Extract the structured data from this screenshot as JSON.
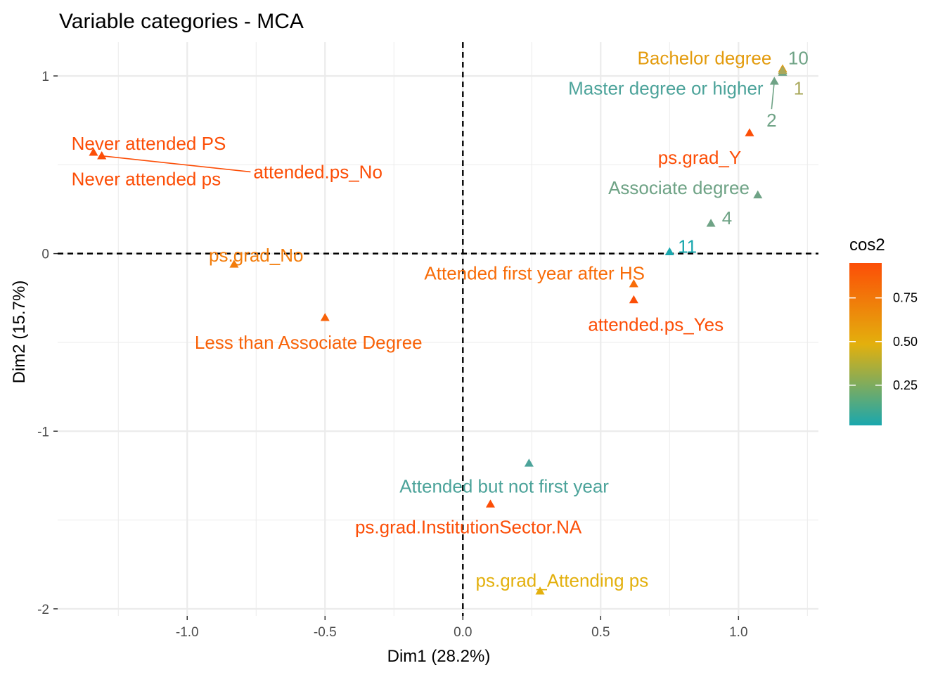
{
  "chart_data": {
    "type": "scatter",
    "title": "Variable categories - MCA",
    "xlabel": "Dim1 (28.2%)",
    "ylabel": "Dim2 (15.7%)",
    "xlim": [
      -1.47,
      1.29
    ],
    "ylim": [
      -2.04,
      1.19
    ],
    "x_ticks": [
      -1.0,
      -0.5,
      0.0,
      0.5,
      1.0
    ],
    "x_tick_labels": [
      "-1.0",
      "-0.5",
      "0.0",
      "0.5",
      "1.0"
    ],
    "y_ticks": [
      -2,
      -1,
      0,
      1
    ],
    "y_tick_labels": [
      "-2",
      "-1",
      "0",
      "1"
    ],
    "grid": true,
    "reference_lines": {
      "x": 0,
      "y": 0
    },
    "colors": {
      "low": "#1AA7AE",
      "mid": "#E3B00D",
      "high": "#FC4E07",
      "grid": "#EBEBEB",
      "line": "#000000"
    },
    "legend": {
      "title": "cos2",
      "placement": "right",
      "ticks": [
        0.25,
        0.5,
        0.75
      ],
      "tick_labels": [
        "0.25",
        "0.50",
        "0.75"
      ],
      "range": [
        0.02,
        0.95
      ]
    },
    "points": [
      {
        "label": "Bachelor degree",
        "x": 1.16,
        "y": 1.04,
        "cos2": 0.55,
        "color": "#E39B0D",
        "lx": 1.12,
        "ly": 1.1,
        "anchor": "end"
      },
      {
        "label": "10",
        "x": 1.16,
        "y": 1.02,
        "cos2": 0.2,
        "color": "#6FA386",
        "lx": 1.18,
        "ly": 1.1,
        "anchor": "start"
      },
      {
        "label": "Master degree or higher",
        "x": 1.16,
        "y": 1.03,
        "cos2": 0.12,
        "color": "#4CA39A",
        "lx": 1.09,
        "ly": 0.93,
        "anchor": "end"
      },
      {
        "label": "1",
        "x": 1.16,
        "y": 1.03,
        "cos2": 0.35,
        "color": "#A9A85B",
        "lx": 1.2,
        "ly": 0.93,
        "anchor": "start"
      },
      {
        "label": "2",
        "x": 1.13,
        "y": 0.97,
        "cos2": 0.2,
        "color": "#6FA386",
        "lx": 1.12,
        "ly": 0.75,
        "anchor": "middle",
        "leader": true
      },
      {
        "label": "ps.grad_Y",
        "x": 1.04,
        "y": 0.68,
        "cos2": 0.92,
        "color": "#FC4E07",
        "lx": 1.01,
        "ly": 0.54,
        "anchor": "end"
      },
      {
        "label": "Associate degree",
        "x": 1.07,
        "y": 0.33,
        "cos2": 0.2,
        "color": "#6FA386",
        "lx": 1.04,
        "ly": 0.37,
        "anchor": "end"
      },
      {
        "label": "4",
        "x": 0.9,
        "y": 0.17,
        "cos2": 0.2,
        "color": "#6FA386",
        "lx": 0.94,
        "ly": 0.2,
        "anchor": "start"
      },
      {
        "label": "11",
        "x": 0.75,
        "y": 0.01,
        "cos2": 0.05,
        "color": "#1AA7AE",
        "lx": 0.78,
        "ly": 0.04,
        "anchor": "start"
      },
      {
        "label": "Never attended PS",
        "x": -1.34,
        "y": 0.57,
        "cos2": 0.95,
        "color": "#FC4E07",
        "lx": -1.42,
        "ly": 0.62,
        "anchor": "start"
      },
      {
        "label": "Never attended ps",
        "x": -1.31,
        "y": 0.55,
        "cos2": 0.95,
        "color": "#FC4E07",
        "lx": -1.42,
        "ly": 0.42,
        "anchor": "start"
      },
      {
        "label": "attended.ps_No",
        "x": -1.31,
        "y": 0.55,
        "cos2": 0.95,
        "color": "#FC4E07",
        "lx": -0.76,
        "ly": 0.46,
        "anchor": "start",
        "leader": true
      },
      {
        "label": "ps.grad_No",
        "x": -0.83,
        "y": -0.06,
        "cos2": 0.7,
        "color": "#F37C0A",
        "lx": -0.75,
        "ly": -0.01,
        "anchor": "middle"
      },
      {
        "label": "Less than Associate Degree",
        "x": -0.5,
        "y": -0.36,
        "cos2": 0.85,
        "color": "#F86208",
        "lx": -0.56,
        "ly": -0.5,
        "anchor": "middle"
      },
      {
        "label": "Attended first year after HS",
        "x": 0.62,
        "y": -0.17,
        "cos2": 0.8,
        "color": "#F86C08",
        "lx": 0.26,
        "ly": -0.11,
        "anchor": "middle"
      },
      {
        "label": "attended.ps_Yes",
        "x": 0.62,
        "y": -0.26,
        "cos2": 0.93,
        "color": "#FC4E07",
        "lx": 0.7,
        "ly": -0.4,
        "anchor": "middle"
      },
      {
        "label": "Attended but not first year",
        "x": 0.24,
        "y": -1.18,
        "cos2": 0.12,
        "color": "#4CA39A",
        "lx": 0.15,
        "ly": -1.31,
        "anchor": "middle"
      },
      {
        "label": "ps.grad.InstitutionSector.NA",
        "x": 0.1,
        "y": -1.41,
        "cos2": 0.92,
        "color": "#FC4E07",
        "lx": 0.02,
        "ly": -1.54,
        "anchor": "middle"
      },
      {
        "label": "ps.grad_Attending ps",
        "x": 0.28,
        "y": -1.9,
        "cos2": 0.5,
        "color": "#E3B00D",
        "lx": 0.36,
        "ly": -1.84,
        "anchor": "middle"
      }
    ]
  }
}
